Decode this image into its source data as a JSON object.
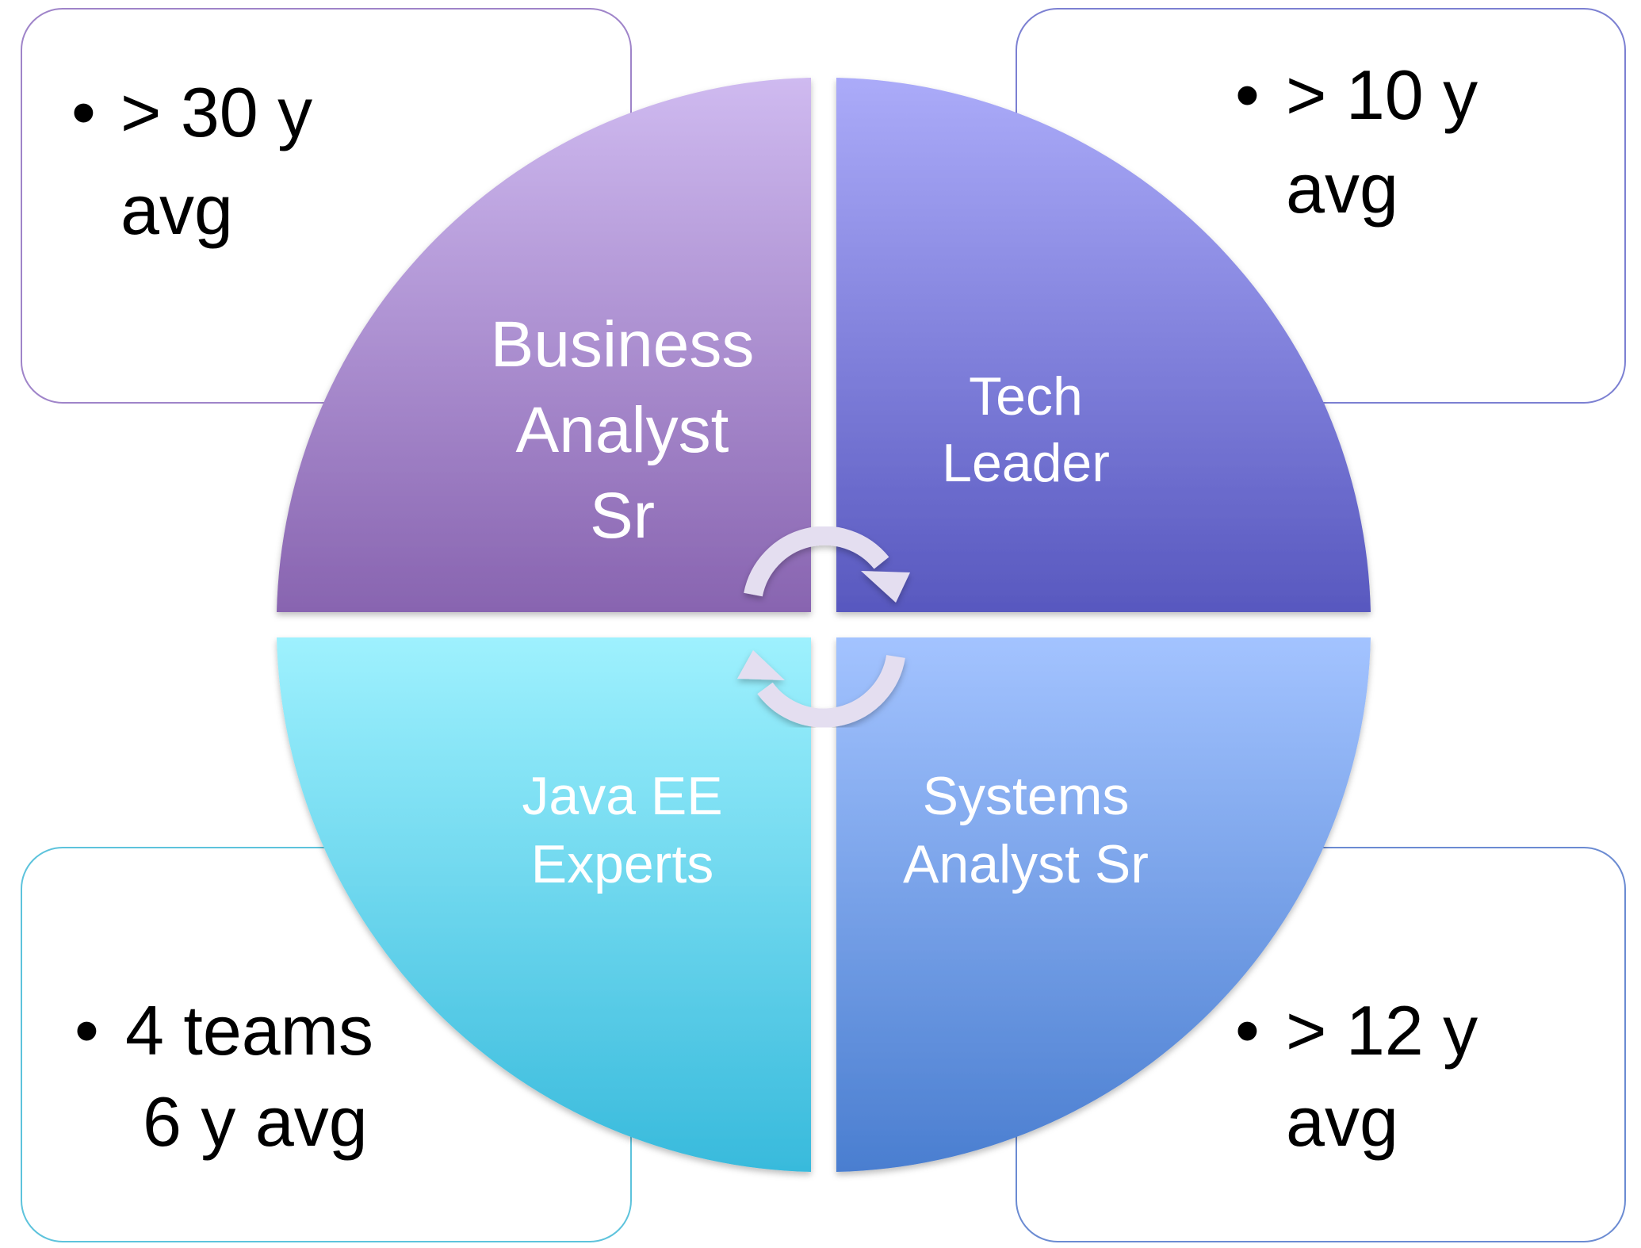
{
  "quadrants": {
    "top_left": {
      "lines": [
        "Business",
        "Analyst",
        "Sr"
      ],
      "color_top": "#cfbaf0",
      "color_bottom": "#8864b0"
    },
    "top_right": {
      "lines": [
        "Tech",
        "Leader"
      ],
      "color_top": "#ababf9",
      "color_bottom": "#5858bf"
    },
    "bottom_left": {
      "lines": [
        "Java EE",
        "Experts"
      ],
      "color_top": "#9ef1fe",
      "color_bottom": "#38badc"
    },
    "bottom_right": {
      "lines": [
        "Systems",
        "Analyst Sr"
      ],
      "color_top": "#a3c3ff",
      "color_bottom": "#4a7ed0"
    }
  },
  "boxes": {
    "top_left": {
      "bullet": "•",
      "lines": [
        "> 30 y",
        "avg"
      ],
      "border": "#9f84c9"
    },
    "top_right": {
      "bullet": "•",
      "lines": [
        "> 10 y",
        "avg"
      ],
      "border": "#7c80d2"
    },
    "bottom_left": {
      "bullet": "•",
      "lines": [
        "4 teams",
        "6 y avg"
      ],
      "border": "#5dc3dc"
    },
    "bottom_right": {
      "bullet": "•",
      "lines": [
        "> 12 y",
        "avg"
      ],
      "border": "#6b8bd2"
    }
  },
  "cycle_arrows": {
    "icon": "circular-arrows-icon",
    "color": "#e4def0"
  }
}
